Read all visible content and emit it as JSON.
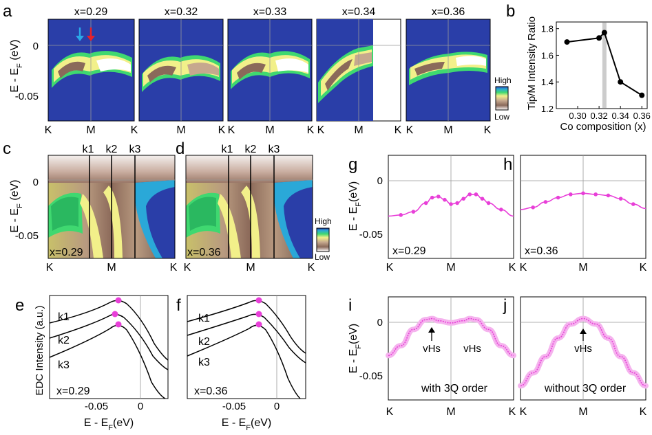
{
  "panel_letters": [
    "a",
    "b",
    "c",
    "d",
    "e",
    "f",
    "g",
    "h",
    "i",
    "j"
  ],
  "colorbar": {
    "high": "High",
    "low": "Low",
    "colors": [
      "#2a3ea8",
      "#2aa8d8",
      "#3fd870",
      "#f2f08a",
      "#c6a88e",
      "#8a6a5a",
      "#ffffff"
    ]
  },
  "common": {
    "energy_axis_label": "E - E",
    "energy_axis_sub": "F",
    "energy_axis_unit": " (eV)",
    "energy_axis_unit_compact": "(eV)",
    "k_labels": [
      "K",
      "M",
      "K"
    ],
    "y_tick_labels": [
      "0",
      "-0.05"
    ],
    "x_tick_labels_edc": [
      "-0.05",
      "0"
    ],
    "colors": {
      "pink": "#e83fd8",
      "pink_fill": "#f5b3ee",
      "blue_arrow": "#2aa8e8",
      "red_arrow": "#e8222a",
      "gray_band": "#cccccc"
    }
  },
  "panel_a": {
    "titles": [
      "x=0.29",
      "x=0.32",
      "x=0.33",
      "x=0.34",
      "x=0.36"
    ]
  },
  "panel_b": {
    "ylabel": "Tip/M Intensity Ratio",
    "xlabel": "Co composition (x)",
    "y_ticks": [
      "1.8",
      "1.6",
      "1.4",
      "1.2"
    ],
    "x_ticks": [
      "0.30",
      "0.32",
      "0.34",
      "0.36"
    ]
  },
  "panel_cd": {
    "cut_labels": [
      "k1",
      "k2",
      "k3"
    ],
    "inset_labels": [
      "x=0.29",
      "x=0.36"
    ]
  },
  "panel_ef": {
    "ylabel": "EDC Intensity (a.u.)",
    "curve_labels": [
      "k1",
      "k2",
      "k3"
    ],
    "inset_labels": [
      "x=0.29",
      "x=0.36"
    ]
  },
  "panel_gh": {
    "inset_labels": [
      "x=0.29",
      "x=0.36"
    ]
  },
  "panel_ij": {
    "vhs_label": "vHs",
    "captions": [
      "with 3Q order",
      "without 3Q order"
    ]
  },
  "chart_data": [
    {
      "type": "line",
      "panel": "b",
      "title": "",
      "xlabel": "Co composition (x)",
      "ylabel": "Tip/M Intensity Ratio",
      "x": [
        0.29,
        0.32,
        0.325,
        0.34,
        0.36
      ],
      "values": [
        1.7,
        1.73,
        1.77,
        1.4,
        1.3
      ],
      "xlim": [
        0.28,
        0.365
      ],
      "ylim": [
        1.2,
        1.85
      ],
      "highlight_x": 0.325
    },
    {
      "type": "line",
      "panel": "g",
      "title": "",
      "xlabel": "",
      "ylabel": "E - EF (eV)",
      "categories": [
        "K",
        "M",
        "K"
      ],
      "x": [
        0,
        0.1,
        0.2,
        0.3,
        0.35,
        0.4,
        0.45,
        0.5,
        0.55,
        0.6,
        0.65,
        0.7,
        0.75,
        0.8,
        0.9,
        1.0
      ],
      "values": [
        -0.036,
        -0.035,
        -0.032,
        -0.024,
        -0.019,
        -0.018,
        -0.021,
        -0.025,
        -0.024,
        -0.02,
        -0.016,
        -0.016,
        -0.02,
        -0.024,
        -0.03,
        -0.036
      ],
      "ylim": [
        -0.075,
        0.02
      ]
    },
    {
      "type": "line",
      "panel": "h",
      "title": "",
      "xlabel": "",
      "ylabel": "E - EF (eV)",
      "categories": [
        "K",
        "M",
        "K"
      ],
      "x": [
        0,
        0.1,
        0.2,
        0.3,
        0.4,
        0.5,
        0.6,
        0.7,
        0.8,
        0.9,
        1.0
      ],
      "values": [
        -0.03,
        -0.028,
        -0.023,
        -0.019,
        -0.016,
        -0.015,
        -0.016,
        -0.017,
        -0.02,
        -0.025,
        -0.029
      ],
      "ylim": [
        -0.075,
        0.02
      ]
    },
    {
      "type": "line",
      "panel": "i",
      "title": "",
      "xlabel": "",
      "ylabel": "E - EF (eV)",
      "categories": [
        "K",
        "M",
        "K"
      ],
      "x": [
        0,
        0.1,
        0.2,
        0.3,
        0.35,
        0.4,
        0.5,
        0.6,
        0.65,
        0.7,
        0.8,
        0.9,
        1.0
      ],
      "values": [
        -0.034,
        -0.025,
        -0.01,
        -0.001,
        0.0,
        -0.002,
        -0.004,
        -0.002,
        0.0,
        -0.001,
        -0.01,
        -0.025,
        -0.034
      ],
      "ylim": [
        -0.075,
        0.02
      ]
    },
    {
      "type": "line",
      "panel": "j",
      "title": "",
      "xlabel": "",
      "ylabel": "E - EF (eV)",
      "categories": [
        "K",
        "M",
        "K"
      ],
      "x": [
        0,
        0.1,
        0.2,
        0.3,
        0.4,
        0.5,
        0.6,
        0.7,
        0.8,
        0.9,
        1.0
      ],
      "values": [
        -0.062,
        -0.05,
        -0.035,
        -0.018,
        -0.005,
        0.0,
        -0.005,
        -0.018,
        -0.035,
        -0.05,
        -0.062
      ],
      "ylim": [
        -0.075,
        0.02
      ]
    },
    {
      "type": "line",
      "panel": "e",
      "title": "",
      "xlabel": "E - EF (eV)",
      "ylabel": "EDC Intensity (a.u.)",
      "series": [
        {
          "name": "k1",
          "peak_x": -0.02
        },
        {
          "name": "k2",
          "peak_x": -0.021
        },
        {
          "name": "k3",
          "peak_x": -0.02
        }
      ],
      "xlim": [
        -0.08,
        0.025
      ]
    },
    {
      "type": "line",
      "panel": "f",
      "title": "",
      "xlabel": "E - EF (eV)",
      "ylabel": "EDC Intensity (a.u.)",
      "series": [
        {
          "name": "k1",
          "peak_x": -0.016
        },
        {
          "name": "k2",
          "peak_x": -0.016
        },
        {
          "name": "k3",
          "peak_x": -0.016
        }
      ],
      "xlim": [
        -0.08,
        0.025
      ]
    }
  ]
}
